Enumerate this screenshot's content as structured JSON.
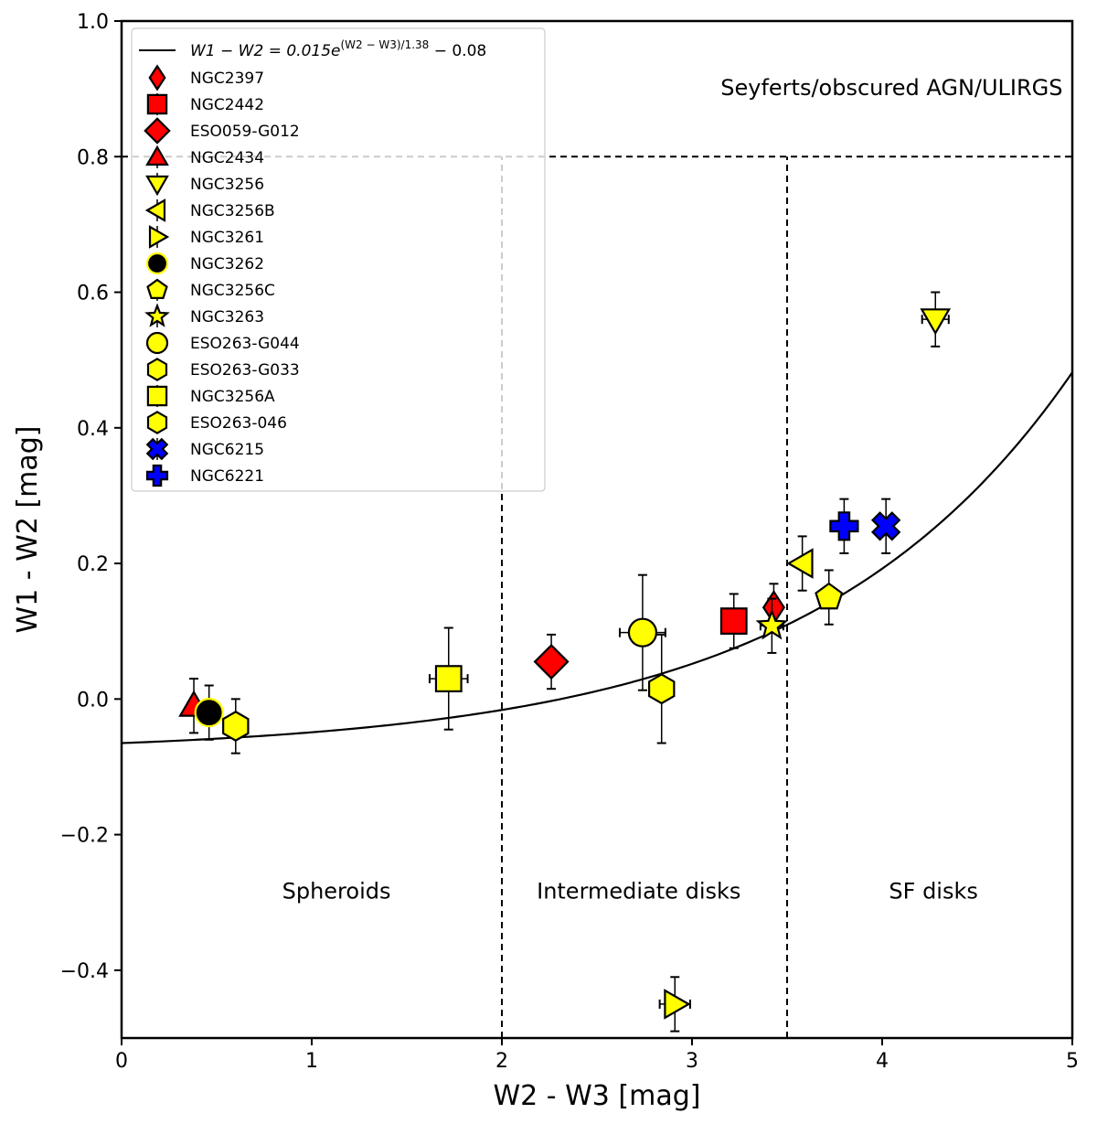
{
  "chart_data": {
    "type": "scatter",
    "xlabel": "W2 - W3 [mag]",
    "ylabel": "W1 - W2 [mag]",
    "xlim": [
      0,
      5
    ],
    "ylim": [
      -0.5,
      1.0
    ],
    "xticks": [
      0,
      1,
      2,
      3,
      4,
      5
    ],
    "yticks": [
      -0.4,
      -0.2,
      0.0,
      0.2,
      0.4,
      0.6,
      0.8,
      1.0
    ],
    "xtick_labels": [
      "0",
      "1",
      "2",
      "3",
      "4",
      "5"
    ],
    "ytick_labels": [
      "−0.4",
      "−0.2",
      "0.0",
      "0.2",
      "0.4",
      "0.6",
      "0.8",
      "1.0"
    ],
    "grid": false,
    "curve": {
      "label_text": "W1 − W2 = 0.015e^{(W2 − W3)/1.38} − 0.08",
      "label_parts": {
        "lhs": "W1 − W2 = 0.015e",
        "exponent": "(W2 − W3)/1.38",
        "rhs": " − 0.08"
      },
      "a": 0.015,
      "scale": 1.38,
      "offset": -0.08,
      "color": "#000000"
    },
    "boundaries": [
      {
        "type": "vertical",
        "x": 2.0,
        "y_from": -0.5,
        "y_to": 0.8
      },
      {
        "type": "vertical",
        "x": 3.5,
        "y_from": -0.5,
        "y_to": 0.8
      },
      {
        "type": "horizontal",
        "y": 0.8,
        "x_from": 0,
        "x_to": 5
      }
    ],
    "regions": [
      {
        "label": "Seyferts/obscured AGN/ULIRGS",
        "x": 4.05,
        "y": 0.9
      },
      {
        "label": "Spheroids",
        "x": 1.13,
        "y": -0.285
      },
      {
        "label": "Intermediate disks",
        "x": 2.72,
        "y": -0.285
      },
      {
        "label": "SF disks",
        "x": 4.27,
        "y": -0.285
      }
    ],
    "legend_position": "upper-left",
    "series": [
      {
        "name": "NGC2397",
        "marker": "thin_diamond",
        "color": "#ff0000",
        "x": 3.43,
        "y": 0.135,
        "xerr": 0.03,
        "yerr": 0.035
      },
      {
        "name": "NGC2442",
        "marker": "square",
        "color": "#ff0000",
        "x": 3.22,
        "y": 0.115,
        "xerr": 0.03,
        "yerr": 0.04
      },
      {
        "name": "ESO059-G012",
        "marker": "diamond",
        "color": "#ff0000",
        "x": 2.26,
        "y": 0.055,
        "xerr": 0.03,
        "yerr": 0.04
      },
      {
        "name": "NGC2434",
        "marker": "triangle_up",
        "color": "#ff0000",
        "x": 0.38,
        "y": -0.01,
        "xerr": 0.03,
        "yerr": 0.04
      },
      {
        "name": "NGC3256",
        "marker": "triangle_down",
        "color": "#ffff00",
        "x": 4.28,
        "y": 0.56,
        "xerr": 0.07,
        "yerr": 0.04
      },
      {
        "name": "NGC3256B",
        "marker": "triangle_left",
        "color": "#ffff00",
        "x": 3.58,
        "y": 0.2,
        "xerr": 0.03,
        "yerr": 0.04
      },
      {
        "name": "NGC3261",
        "marker": "triangle_right",
        "color": "#ffff00",
        "x": 2.91,
        "y": -0.45,
        "xerr": 0.08,
        "yerr": 0.04
      },
      {
        "name": "NGC3262",
        "marker": "circle",
        "color": "#000000",
        "edge": "#ffff00",
        "x": 0.46,
        "y": -0.02,
        "xerr": 0.03,
        "yerr": 0.04
      },
      {
        "name": "NGC3256C",
        "marker": "pentagon",
        "color": "#ffff00",
        "x": 3.72,
        "y": 0.15,
        "xerr": 0.03,
        "yerr": 0.04
      },
      {
        "name": "NGC3263",
        "marker": "star",
        "color": "#ffff00",
        "x": 3.42,
        "y": 0.108,
        "xerr": 0.06,
        "yerr": 0.04
      },
      {
        "name": "ESO263-G044",
        "marker": "circle",
        "color": "#ffff00",
        "x": 2.74,
        "y": 0.098,
        "xerr": 0.12,
        "yerr": 0.085
      },
      {
        "name": "ESO263-G033",
        "marker": "hexagon",
        "color": "#ffff00",
        "x": 0.6,
        "y": -0.04,
        "xerr": 0.03,
        "yerr": 0.04
      },
      {
        "name": "NGC3256A",
        "marker": "square",
        "color": "#ffff00",
        "x": 1.72,
        "y": 0.03,
        "xerr": 0.1,
        "yerr": 0.075
      },
      {
        "name": "ESO263-046",
        "marker": "hexagon",
        "color": "#ffff00",
        "x": 2.84,
        "y": 0.015,
        "xerr": 0.05,
        "yerr": 0.08
      },
      {
        "name": "NGC6215",
        "marker": "x_filled",
        "color": "#0000ff",
        "x": 4.02,
        "y": 0.255,
        "xerr": 0.03,
        "yerr": 0.04
      },
      {
        "name": "NGC6221",
        "marker": "plus_filled",
        "color": "#0000ff",
        "x": 3.8,
        "y": 0.255,
        "xerr": 0.03,
        "yerr": 0.04
      }
    ]
  }
}
